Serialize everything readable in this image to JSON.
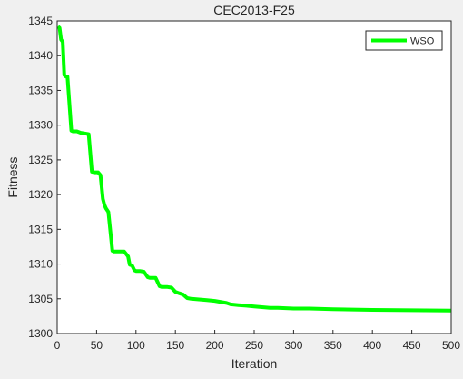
{
  "colors": {
    "figure_background": "#f0f0f0",
    "axes_background": "#ffffff",
    "axes_line": "#262626",
    "series": "#00ff00"
  },
  "chart_data": {
    "type": "line",
    "title": "CEC2013-F25",
    "xlabel": "Iteration",
    "ylabel": "Fitness",
    "xlim": [
      0,
      500
    ],
    "ylim": [
      1300,
      1345
    ],
    "xticks": [
      0,
      50,
      100,
      150,
      200,
      250,
      300,
      350,
      400,
      450,
      500
    ],
    "yticks": [
      1300,
      1305,
      1310,
      1315,
      1320,
      1325,
      1330,
      1335,
      1340,
      1345
    ],
    "grid": false,
    "legend_position": "top-right",
    "series": [
      {
        "name": "WSO",
        "color": "#00ff00",
        "x": [
          1,
          3,
          5,
          7,
          9,
          11,
          13,
          18,
          20,
          25,
          30,
          35,
          40,
          44,
          47,
          52,
          55,
          58,
          60,
          62,
          65,
          70,
          72,
          75,
          80,
          85,
          90,
          92,
          95,
          98,
          100,
          105,
          110,
          115,
          118,
          125,
          130,
          133,
          140,
          145,
          150,
          155,
          160,
          165,
          170,
          180,
          190,
          200,
          210,
          215,
          220,
          230,
          240,
          250,
          260,
          270,
          280,
          300,
          320,
          350,
          400,
          450,
          500
        ],
        "y": [
          1344.2,
          1344.0,
          1342.3,
          1342.0,
          1337.2,
          1337.0,
          1337.0,
          1329.2,
          1329.1,
          1329.1,
          1328.9,
          1328.8,
          1328.7,
          1323.3,
          1323.2,
          1323.2,
          1322.8,
          1319.4,
          1318.5,
          1318.0,
          1317.5,
          1311.9,
          1311.8,
          1311.8,
          1311.8,
          1311.8,
          1311.1,
          1309.9,
          1309.8,
          1309.1,
          1309.0,
          1309.0,
          1308.9,
          1308.1,
          1308.0,
          1308.0,
          1306.8,
          1306.7,
          1306.7,
          1306.6,
          1306.0,
          1305.8,
          1305.6,
          1305.1,
          1305.0,
          1304.9,
          1304.8,
          1304.7,
          1304.5,
          1304.4,
          1304.2,
          1304.1,
          1304.0,
          1303.9,
          1303.8,
          1303.7,
          1303.7,
          1303.6,
          1303.6,
          1303.5,
          1303.4,
          1303.35,
          1303.3
        ]
      }
    ]
  }
}
